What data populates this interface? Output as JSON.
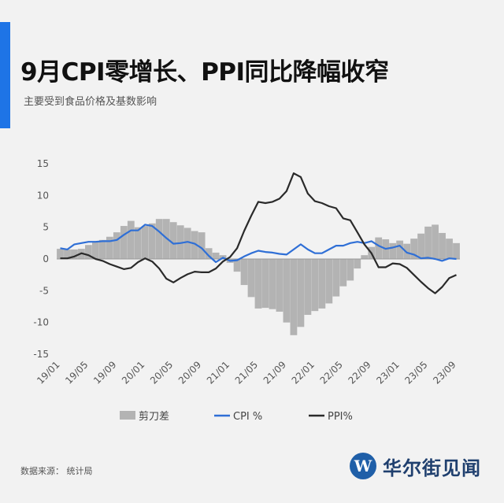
{
  "header": {
    "title": "9月CPI零增长、PPI同比降幅收窄",
    "subtitle": "主要受到食品价格及基数影响"
  },
  "footer": {
    "source": "数据来源：  统计局",
    "logo_text": "华尔街见闻",
    "logo_mark": "W"
  },
  "colors": {
    "accent": "#1e74e6",
    "bar": "#b3b3b3",
    "cpi": "#2f6fd6",
    "ppi": "#2a2a2a"
  },
  "chart_data": {
    "type": "bar",
    "ylim": [
      -15,
      15
    ],
    "yticks": [
      15,
      10,
      5,
      0,
      -5,
      -10,
      -15
    ],
    "grid": false,
    "legend_position": "bottom",
    "x": [
      "19/01",
      "19/02",
      "19/03",
      "19/04",
      "19/05",
      "19/06",
      "19/07",
      "19/08",
      "19/09",
      "19/10",
      "19/11",
      "19/12",
      "20/01",
      "20/02",
      "20/03",
      "20/04",
      "20/05",
      "20/06",
      "20/07",
      "20/08",
      "20/09",
      "20/10",
      "20/11",
      "20/12",
      "21/01",
      "21/02",
      "21/03",
      "21/04",
      "21/05",
      "21/06",
      "21/07",
      "21/08",
      "21/09",
      "21/10",
      "21/11",
      "21/12",
      "22/01",
      "22/02",
      "22/03",
      "22/04",
      "22/05",
      "22/06",
      "22/07",
      "22/08",
      "22/09",
      "22/10",
      "22/11",
      "22/12",
      "23/01",
      "23/02",
      "23/03",
      "23/04",
      "23/05",
      "23/06",
      "23/07",
      "23/08",
      "23/09"
    ],
    "xticks": [
      "19/01",
      "19/05",
      "19/09",
      "20/01",
      "20/05",
      "20/09",
      "21/01",
      "21/05",
      "21/09",
      "22/01",
      "22/05",
      "22/09",
      "23/01",
      "23/05",
      "23/09"
    ],
    "series": [
      {
        "name": "剪刀差",
        "type": "bar",
        "values": [
          1.6,
          1.5,
          1.5,
          1.6,
          2.2,
          2.7,
          3.0,
          3.5,
          4.2,
          5.2,
          6.0,
          5.0,
          5.2,
          5.6,
          6.3,
          6.3,
          5.8,
          5.3,
          4.9,
          4.4,
          4.2,
          1.7,
          1.0,
          0.6,
          -0.6,
          -2.0,
          -4.1,
          -6.0,
          -7.8,
          -7.7,
          -7.9,
          -8.3,
          -10.0,
          -12.0,
          -10.7,
          -8.8,
          -8.2,
          -7.8,
          -7.0,
          -5.9,
          -4.3,
          -3.4,
          -1.5,
          0.6,
          1.9,
          3.4,
          3.1,
          2.5,
          2.9,
          2.4,
          3.2,
          4.0,
          5.1,
          5.4,
          4.1,
          3.2,
          2.5
        ]
      },
      {
        "name": "CPI %",
        "type": "line",
        "values": [
          1.7,
          1.5,
          2.3,
          2.5,
          2.7,
          2.7,
          2.8,
          2.8,
          3.0,
          3.8,
          4.5,
          4.5,
          5.4,
          5.2,
          4.3,
          3.3,
          2.4,
          2.5,
          2.7,
          2.4,
          1.7,
          0.5,
          -0.5,
          0.2,
          -0.3,
          -0.2,
          0.4,
          0.9,
          1.3,
          1.1,
          1.0,
          0.8,
          0.7,
          1.5,
          2.3,
          1.5,
          0.9,
          0.9,
          1.5,
          2.1,
          2.1,
          2.5,
          2.7,
          2.5,
          2.8,
          2.1,
          1.6,
          1.8,
          2.1,
          1.0,
          0.7,
          0.1,
          0.2,
          0.0,
          -0.3,
          0.1,
          0.0
        ]
      },
      {
        "name": "PPI%",
        "type": "line",
        "values": [
          0.1,
          0.1,
          0.4,
          0.9,
          0.6,
          0.0,
          -0.3,
          -0.8,
          -1.2,
          -1.6,
          -1.4,
          -0.5,
          0.1,
          -0.4,
          -1.5,
          -3.1,
          -3.7,
          -3.0,
          -2.4,
          -2.0,
          -2.1,
          -2.1,
          -1.5,
          -0.4,
          0.3,
          1.7,
          4.4,
          6.8,
          9.0,
          8.8,
          9.0,
          9.5,
          10.7,
          13.5,
          12.9,
          10.3,
          9.1,
          8.8,
          8.3,
          8.0,
          6.4,
          6.1,
          4.2,
          2.3,
          0.9,
          -1.3,
          -1.3,
          -0.7,
          -0.8,
          -1.4,
          -2.5,
          -3.6,
          -4.6,
          -5.4,
          -4.4,
          -3.0,
          -2.5
        ]
      }
    ]
  }
}
